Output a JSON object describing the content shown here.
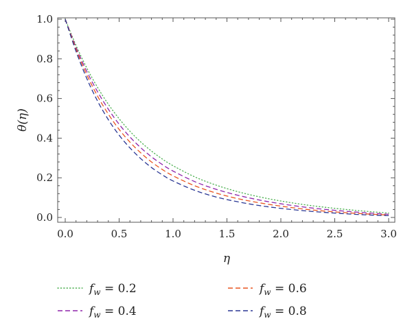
{
  "chart_data": {
    "type": "line",
    "xlabel": "η",
    "ylabel": "θ(η)",
    "xlim": [
      0,
      3
    ],
    "ylim": [
      0,
      1
    ],
    "grid": false,
    "legend_position": "bottom",
    "x_ticks": [
      "0.0",
      "0.5",
      "1.0",
      "1.5",
      "2.0",
      "2.5",
      "3.0"
    ],
    "y_ticks": [
      "0.0",
      "0.2",
      "0.4",
      "0.6",
      "0.8",
      "1.0"
    ],
    "x": [
      0,
      0.1,
      0.2,
      0.3,
      0.4,
      0.5,
      0.6,
      0.7,
      0.8,
      0.9,
      1.0,
      1.2,
      1.4,
      1.6,
      1.8,
      2.0,
      2.25,
      2.5,
      2.75,
      3.0
    ],
    "series": [
      {
        "name": "f_w = 0.2",
        "legend_label": {
          "symbol": "f",
          "subscript": "w",
          "rest": " = 0.2"
        },
        "color": "#4caf50",
        "dash": "dotted",
        "values": [
          1.0,
          0.868,
          0.754,
          0.656,
          0.571,
          0.498,
          0.435,
          0.381,
          0.335,
          0.295,
          0.261,
          0.205,
          0.163,
          0.13,
          0.104,
          0.083,
          0.062,
          0.046,
          0.033,
          0.022
        ]
      },
      {
        "name": "f_w = 0.4",
        "legend_label": {
          "symbol": "f",
          "subscript": "w",
          "rest": " = 0.4"
        },
        "color": "#8e24aa",
        "dash": "dashed",
        "values": [
          1.0,
          0.858,
          0.737,
          0.634,
          0.546,
          0.47,
          0.406,
          0.352,
          0.306,
          0.267,
          0.234,
          0.181,
          0.142,
          0.112,
          0.088,
          0.069,
          0.05,
          0.036,
          0.025,
          0.016
        ]
      },
      {
        "name": "f_w = 0.6",
        "legend_label": {
          "symbol": "f",
          "subscript": "w",
          "rest": " = 0.6"
        },
        "color": "#e8541e",
        "dash": "dashed",
        "values": [
          1.0,
          0.849,
          0.72,
          0.612,
          0.521,
          0.444,
          0.38,
          0.326,
          0.28,
          0.242,
          0.21,
          0.16,
          0.123,
          0.095,
          0.074,
          0.057,
          0.04,
          0.028,
          0.019,
          0.012
        ]
      },
      {
        "name": "f_w = 0.8",
        "legend_label": {
          "symbol": "f",
          "subscript": "w",
          "rest": " = 0.8"
        },
        "color": "#283593",
        "dash": "dashed",
        "values": [
          1.0,
          0.838,
          0.701,
          0.587,
          0.493,
          0.415,
          0.351,
          0.297,
          0.252,
          0.215,
          0.184,
          0.137,
          0.103,
          0.079,
          0.06,
          0.046,
          0.032,
          0.022,
          0.014,
          0.009
        ]
      }
    ]
  }
}
